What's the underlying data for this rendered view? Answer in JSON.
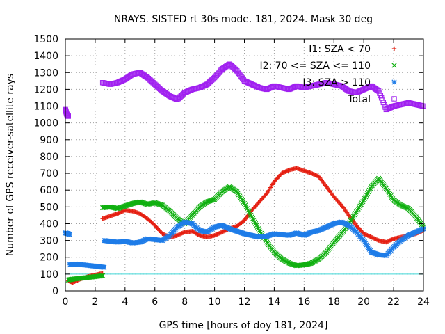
{
  "chart_data": {
    "type": "scatter",
    "title": "NRAYS. SISTED rt 30s mode. 181, 2024. Mask 30 deg",
    "xlabel": "GPS time [hours of doy 181, 2024]",
    "ylabel": "Number of GPS receiver-satellite rays",
    "xlim": [
      0,
      24
    ],
    "ylim": [
      0,
      1500
    ],
    "xticks": [
      0,
      2,
      4,
      6,
      8,
      10,
      12,
      14,
      16,
      18,
      20,
      22,
      24
    ],
    "yticks": [
      0,
      100,
      200,
      300,
      400,
      500,
      600,
      700,
      800,
      900,
      1000,
      1100,
      1200,
      1300,
      1400,
      1500
    ],
    "grid": true,
    "legend_position": "top-right",
    "reference_line": {
      "y": 100,
      "color": "#40d8d8"
    },
    "series": [
      {
        "name": "I1: SZA < 70",
        "marker": "+",
        "color": "#e51e10",
        "segments": [
          {
            "x": [
              0.2,
              0.5,
              1.0,
              1.5,
              2.0,
              2.5
            ],
            "y": [
              60,
              50,
              70,
              85,
              95,
              105
            ]
          },
          {
            "x": [
              2.5,
              3.0,
              3.5,
              4.0,
              4.5,
              5.0,
              5.5,
              6.0,
              6.5,
              7.0,
              7.5,
              8.0,
              8.5,
              9.0,
              9.5,
              10.0,
              10.5,
              11.0,
              11.5,
              12.0,
              12.5,
              13.0,
              13.5,
              14.0,
              14.5,
              15.0,
              15.5,
              16.0,
              16.5,
              17.0,
              17.5,
              18.0,
              18.5,
              19.0,
              19.5,
              20.0,
              20.5,
              21.0,
              21.5,
              22.0,
              22.5,
              23.0,
              23.5,
              24.0
            ],
            "y": [
              430,
              445,
              460,
              480,
              475,
              460,
              430,
              390,
              340,
              320,
              330,
              350,
              355,
              330,
              320,
              330,
              350,
              370,
              385,
              420,
              480,
              530,
              580,
              650,
              700,
              720,
              730,
              715,
              700,
              680,
              620,
              560,
              510,
              450,
              390,
              340,
              320,
              300,
              290,
              310,
              320,
              330,
              340,
              360
            ]
          }
        ]
      },
      {
        "name": "I2: 70 <= SZA <= 110",
        "marker": "x",
        "color": "#10b010",
        "segments": [
          {
            "x": [
              0.2,
              0.5,
              1.0,
              1.5,
              2.0,
              2.5
            ],
            "y": [
              65,
              70,
              75,
              80,
              85,
              90
            ]
          },
          {
            "x": [
              2.5,
              3.0,
              3.5,
              4.0,
              4.5,
              5.0,
              5.5,
              6.0,
              6.5,
              7.0,
              7.5,
              8.0,
              8.5,
              9.0,
              9.5,
              10.0,
              10.5,
              11.0,
              11.5,
              12.0,
              12.5,
              13.0,
              13.5,
              14.0,
              14.5,
              15.0,
              15.5,
              16.0,
              16.5,
              17.0,
              17.5,
              18.0,
              18.5,
              19.0,
              19.5,
              20.0,
              20.5,
              21.0,
              21.5,
              22.0,
              22.5,
              23.0,
              23.5,
              24.0
            ],
            "y": [
              495,
              500,
              490,
              505,
              520,
              530,
              515,
              525,
              510,
              475,
              430,
              400,
              450,
              500,
              530,
              545,
              590,
              620,
              590,
              520,
              440,
              360,
              290,
              230,
              190,
              165,
              150,
              155,
              165,
              190,
              230,
              290,
              340,
              400,
              470,
              540,
              620,
              670,
              610,
              540,
              510,
              490,
              440,
              380
            ]
          }
        ]
      },
      {
        "name": "I3: SZA > 110",
        "marker": "*",
        "color": "#1e7ce8",
        "segments": [
          {
            "x": [
              0.0,
              0.2,
              0.3
            ],
            "y": [
              345,
              340,
              335
            ]
          },
          {
            "x": [
              0.3,
              0.7,
              1.2,
              1.7,
              2.2,
              2.6
            ],
            "y": [
              155,
              160,
              155,
              150,
              145,
              140
            ]
          },
          {
            "x": [
              2.6,
              3.0,
              3.5,
              4.0,
              4.5,
              5.0,
              5.5,
              6.0,
              6.5,
              7.0,
              7.5,
              8.0,
              8.5,
              9.0,
              9.5,
              10.0,
              10.5,
              11.0,
              11.5,
              12.0,
              12.5,
              13.0,
              13.5,
              14.0,
              14.5,
              15.0,
              15.5,
              16.0,
              16.5,
              17.0,
              17.5,
              18.0,
              18.5,
              19.0,
              19.5,
              20.0,
              20.5,
              21.0,
              21.5,
              22.0,
              22.5,
              23.0,
              23.5,
              24.0
            ],
            "y": [
              300,
              295,
              290,
              295,
              285,
              290,
              310,
              305,
              300,
              330,
              380,
              410,
              400,
              360,
              350,
              380,
              390,
              370,
              355,
              340,
              330,
              320,
              325,
              340,
              335,
              330,
              345,
              330,
              350,
              360,
              380,
              400,
              410,
              390,
              350,
              300,
              230,
              215,
              210,
              260,
              300,
              330,
              350,
              370
            ]
          }
        ]
      },
      {
        "name": "Total",
        "marker": "square",
        "color": "#a020f0",
        "segments": [
          {
            "x": [
              0.0,
              0.1,
              0.2
            ],
            "y": [
              1080,
              1050,
              1040
            ]
          },
          {
            "x": [
              2.5,
              3.0,
              3.5,
              4.0,
              4.5,
              5.0,
              5.5,
              6.0,
              6.5,
              7.0,
              7.5,
              8.0,
              8.5,
              9.0,
              9.5,
              10.0,
              10.5,
              11.0,
              11.5,
              12.0,
              12.5,
              13.0,
              13.5,
              14.0,
              14.5,
              15.0,
              15.5,
              16.0,
              16.5,
              17.0,
              17.5,
              18.0,
              18.5,
              19.0,
              19.5,
              20.0,
              20.5,
              21.0,
              21.5,
              22.0,
              22.5,
              23.0,
              23.5,
              24.0
            ],
            "y": [
              1240,
              1230,
              1240,
              1260,
              1290,
              1300,
              1270,
              1230,
              1190,
              1160,
              1140,
              1180,
              1200,
              1210,
              1230,
              1270,
              1320,
              1350,
              1310,
              1250,
              1230,
              1210,
              1200,
              1220,
              1210,
              1200,
              1220,
              1210,
              1220,
              1230,
              1240,
              1230,
              1220,
              1190,
              1180,
              1200,
              1220,
              1190,
              1080,
              1100,
              1110,
              1120,
              1110,
              1100
            ]
          }
        ]
      }
    ]
  }
}
